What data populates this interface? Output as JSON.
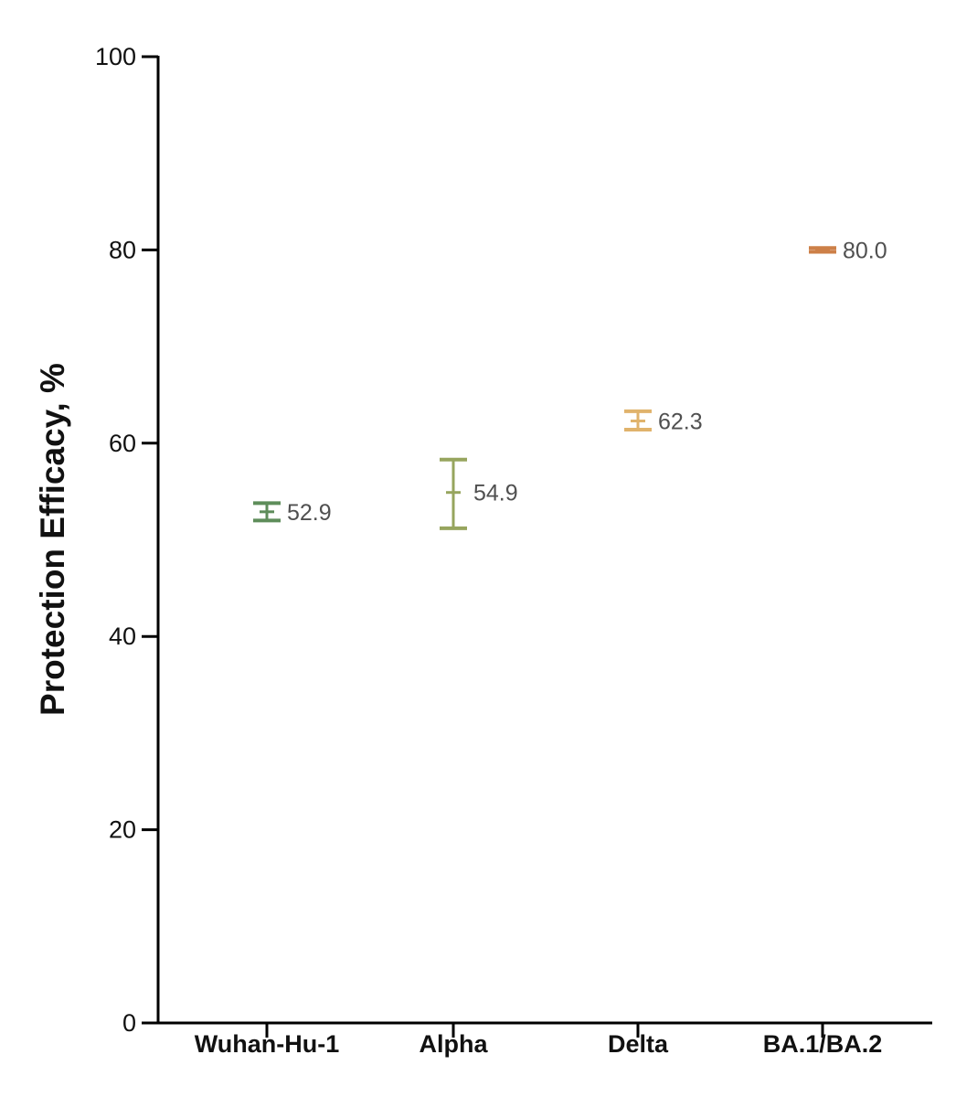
{
  "chart_data": {
    "type": "scatter",
    "ylabel": "Protection Efficacy, %",
    "xlabel": "",
    "ylim": [
      0,
      100
    ],
    "yticks": [
      0,
      20,
      40,
      60,
      80,
      100
    ],
    "grid": false,
    "categories": [
      "Wuhan-Hu-1",
      "Alpha",
      "Delta",
      "BA.1/BA.2"
    ],
    "points": [
      {
        "category": "Wuhan-Hu-1",
        "value": 52.9,
        "label": "52.9",
        "low": 52.0,
        "high": 53.8,
        "color": "#5e8d5a"
      },
      {
        "category": "Alpha",
        "value": 54.9,
        "label": "54.9",
        "low": 51.2,
        "high": 58.3,
        "color": "#97a55e"
      },
      {
        "category": "Delta",
        "value": 62.3,
        "label": "62.3",
        "low": 61.4,
        "high": 63.3,
        "color": "#e0b36c"
      },
      {
        "category": "BA.1/BA.2",
        "value": 80.0,
        "label": "80.0",
        "low": 79.8,
        "high": 80.2,
        "color": "#cd8048"
      }
    ]
  }
}
